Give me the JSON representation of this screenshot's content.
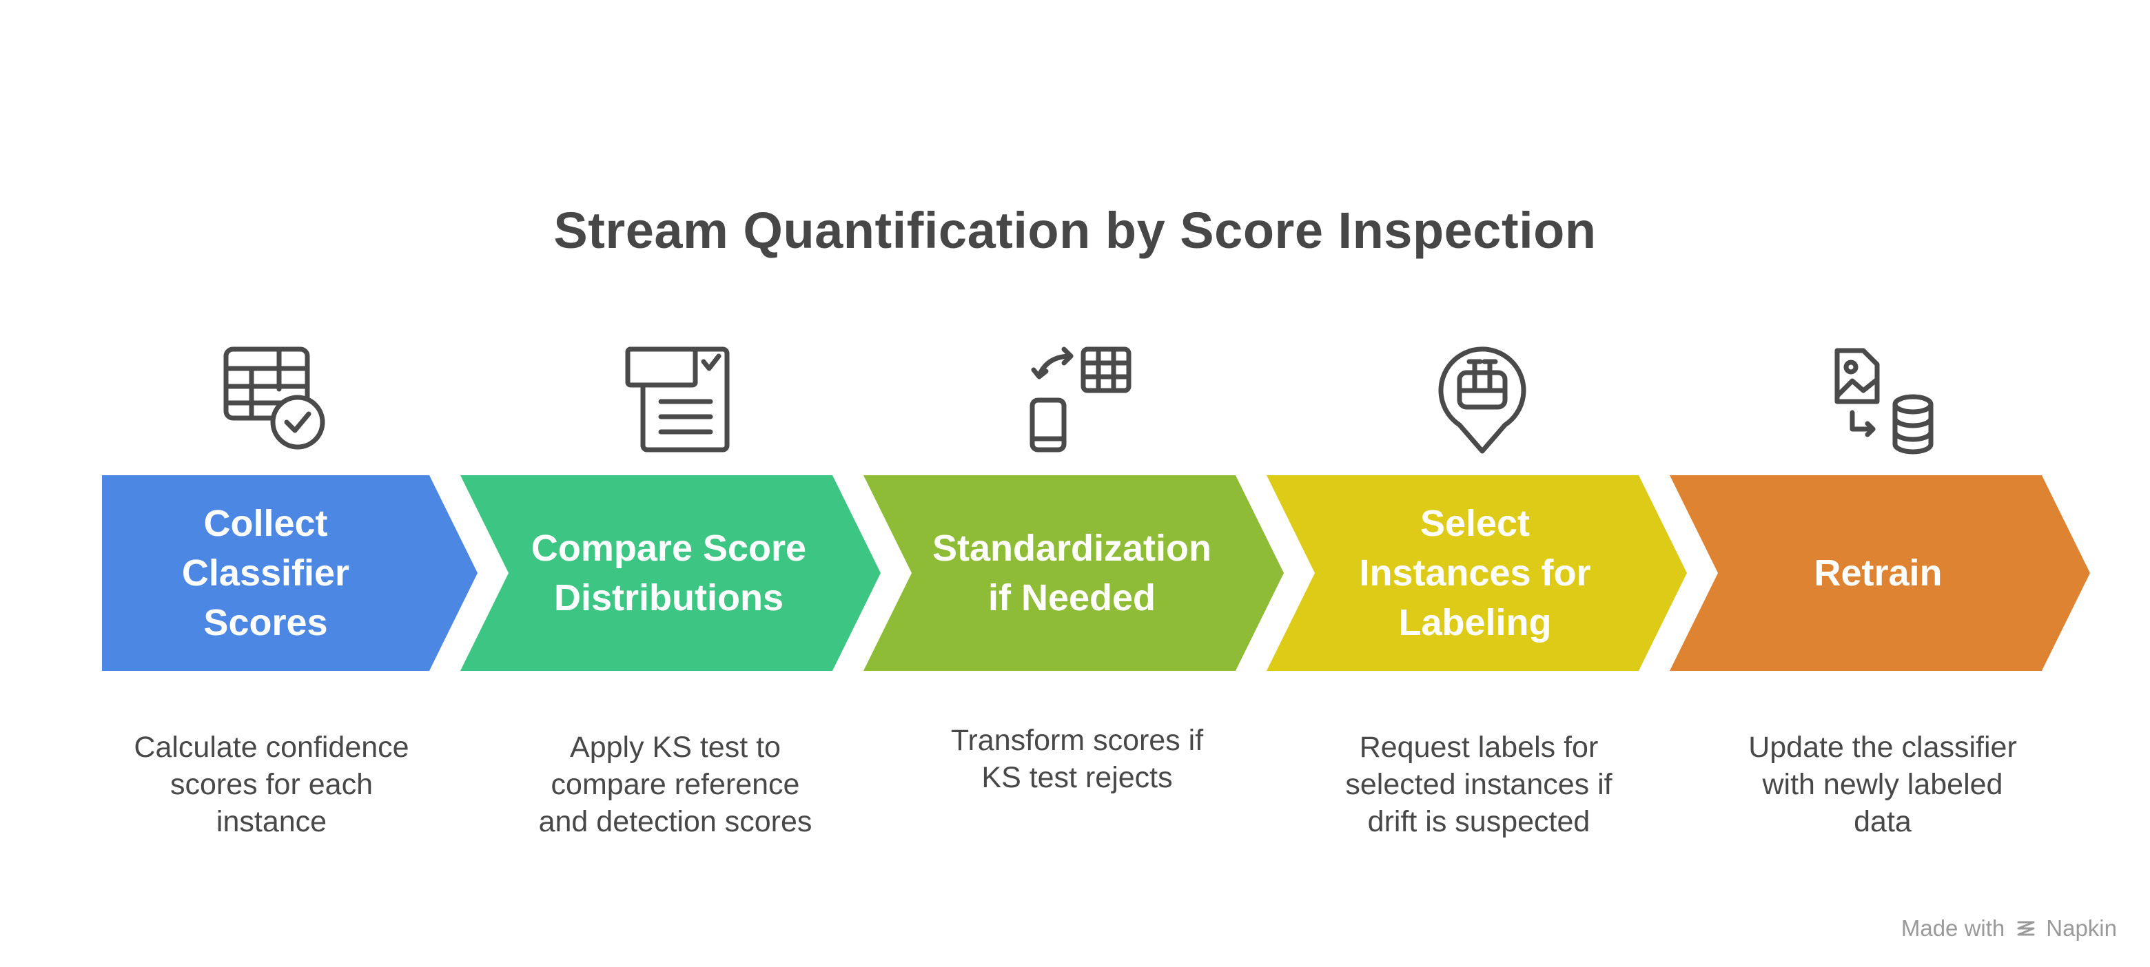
{
  "title": "Stream Quantification by Score Inspection",
  "steps": [
    {
      "label_lines": [
        "Collect",
        "Classifier",
        "Scores"
      ],
      "description_lines": [
        "Calculate confidence",
        "scores for each",
        "instance"
      ],
      "color": "#4C87E3",
      "icon": "table-check-icon"
    },
    {
      "label_lines": [
        "Compare Score",
        "Distributions"
      ],
      "description_lines": [
        "Apply KS test to",
        "compare reference",
        "and detection scores"
      ],
      "color": "#3DC583",
      "icon": "document-report-icon"
    },
    {
      "label_lines": [
        "Standardization",
        "if Needed"
      ],
      "description_lines": [
        "Transform scores if",
        "KS test rejects"
      ],
      "color": "#8FBC36",
      "icon": "transform-device-icon"
    },
    {
      "label_lines": [
        "Select",
        "Instances for",
        "Labeling"
      ],
      "description_lines": [
        "Request labels for",
        "selected instances if",
        "drift is suspected"
      ],
      "color": "#DDCB18",
      "icon": "location-tag-icon"
    },
    {
      "label_lines": [
        "Retrain"
      ],
      "description_lines": [
        "Update the classifier",
        "with newly labeled",
        "data"
      ],
      "color": "#DE8331",
      "icon": "image-to-database-icon"
    }
  ],
  "footer": {
    "made_with": "Made with",
    "brand": "Napkin"
  }
}
